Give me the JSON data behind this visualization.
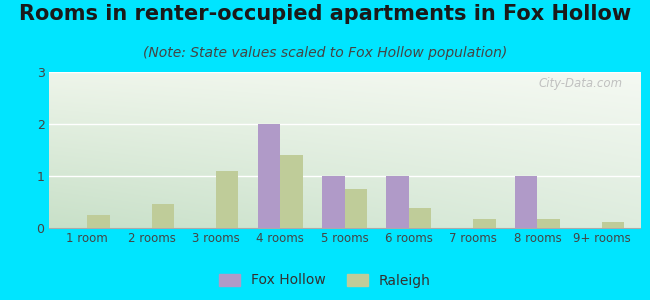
{
  "title": "Rooms in renter-occupied apartments in Fox Hollow",
  "subtitle": "(Note: State values scaled to Fox Hollow population)",
  "categories": [
    "1 room",
    "2 rooms",
    "3 rooms",
    "4 rooms",
    "5 rooms",
    "6 rooms",
    "7 rooms",
    "8 rooms",
    "9+ rooms"
  ],
  "fox_hollow": [
    0,
    0,
    0,
    2.0,
    1.0,
    1.0,
    0,
    1.0,
    0
  ],
  "raleigh": [
    0.25,
    0.47,
    1.1,
    1.4,
    0.75,
    0.38,
    0.18,
    0.18,
    0.12
  ],
  "fox_hollow_color": "#b09ac8",
  "raleigh_color": "#bfcc99",
  "background_outer": "#00e5ff",
  "grad_top": "#e8efe0",
  "grad_bottom": "#d4e8d4",
  "grad_right": "#f8faf5",
  "ylim": [
    0,
    3
  ],
  "yticks": [
    0,
    1,
    2,
    3
  ],
  "bar_width": 0.35,
  "title_fontsize": 15,
  "subtitle_fontsize": 10,
  "tick_fontsize": 8.5,
  "watermark": "City-Data.com"
}
